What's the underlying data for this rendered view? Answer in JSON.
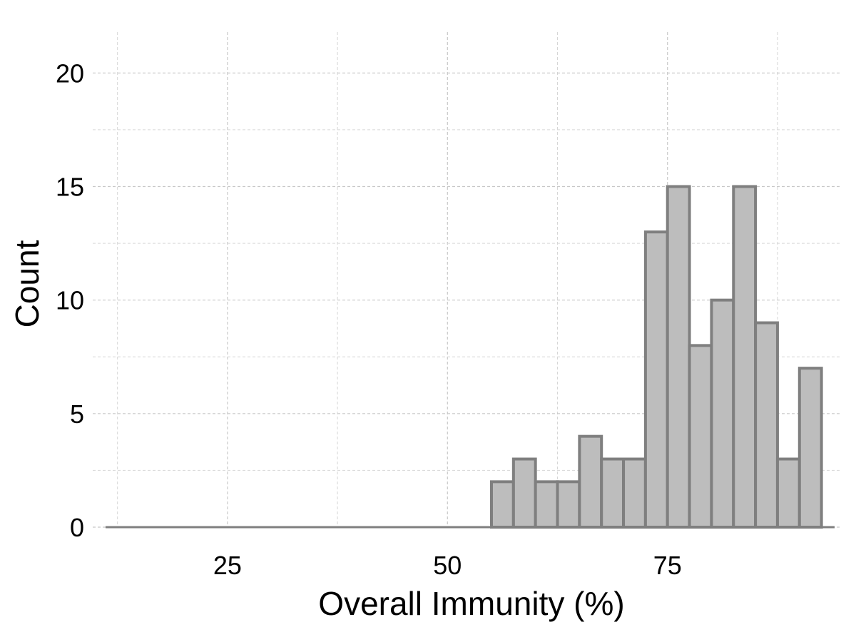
{
  "chart_data": {
    "type": "bar",
    "subtype": "histogram",
    "title": "",
    "xlabel": "Overall Immunity (%)",
    "ylabel": "Count",
    "xlim": [
      10.5,
      94.8
    ],
    "ylim": [
      0,
      21
    ],
    "x_ticks": [
      25,
      50,
      75
    ],
    "y_ticks": [
      0,
      5,
      10,
      15,
      20
    ],
    "bin_width": 2.5,
    "bins": [
      {
        "start": 55.0,
        "end": 57.5,
        "count": 2
      },
      {
        "start": 57.5,
        "end": 60.0,
        "count": 3
      },
      {
        "start": 60.0,
        "end": 62.5,
        "count": 2
      },
      {
        "start": 62.5,
        "end": 65.0,
        "count": 2
      },
      {
        "start": 65.0,
        "end": 67.5,
        "count": 4
      },
      {
        "start": 67.5,
        "end": 70.0,
        "count": 3
      },
      {
        "start": 70.0,
        "end": 72.5,
        "count": 3
      },
      {
        "start": 72.5,
        "end": 75.0,
        "count": 13
      },
      {
        "start": 75.0,
        "end": 77.5,
        "count": 15
      },
      {
        "start": 77.5,
        "end": 80.0,
        "count": 8
      },
      {
        "start": 80.0,
        "end": 82.5,
        "count": 10
      },
      {
        "start": 82.5,
        "end": 85.0,
        "count": 15
      },
      {
        "start": 85.0,
        "end": 87.5,
        "count": 9
      },
      {
        "start": 87.5,
        "end": 90.0,
        "count": 3
      },
      {
        "start": 90.0,
        "end": 92.5,
        "count": 7
      }
    ],
    "grid": true,
    "legend": "none",
    "colors": {
      "bar_fill": "#bdbdbd",
      "bar_stroke": "#7f7f7f",
      "grid": "#c8c8c8"
    }
  }
}
